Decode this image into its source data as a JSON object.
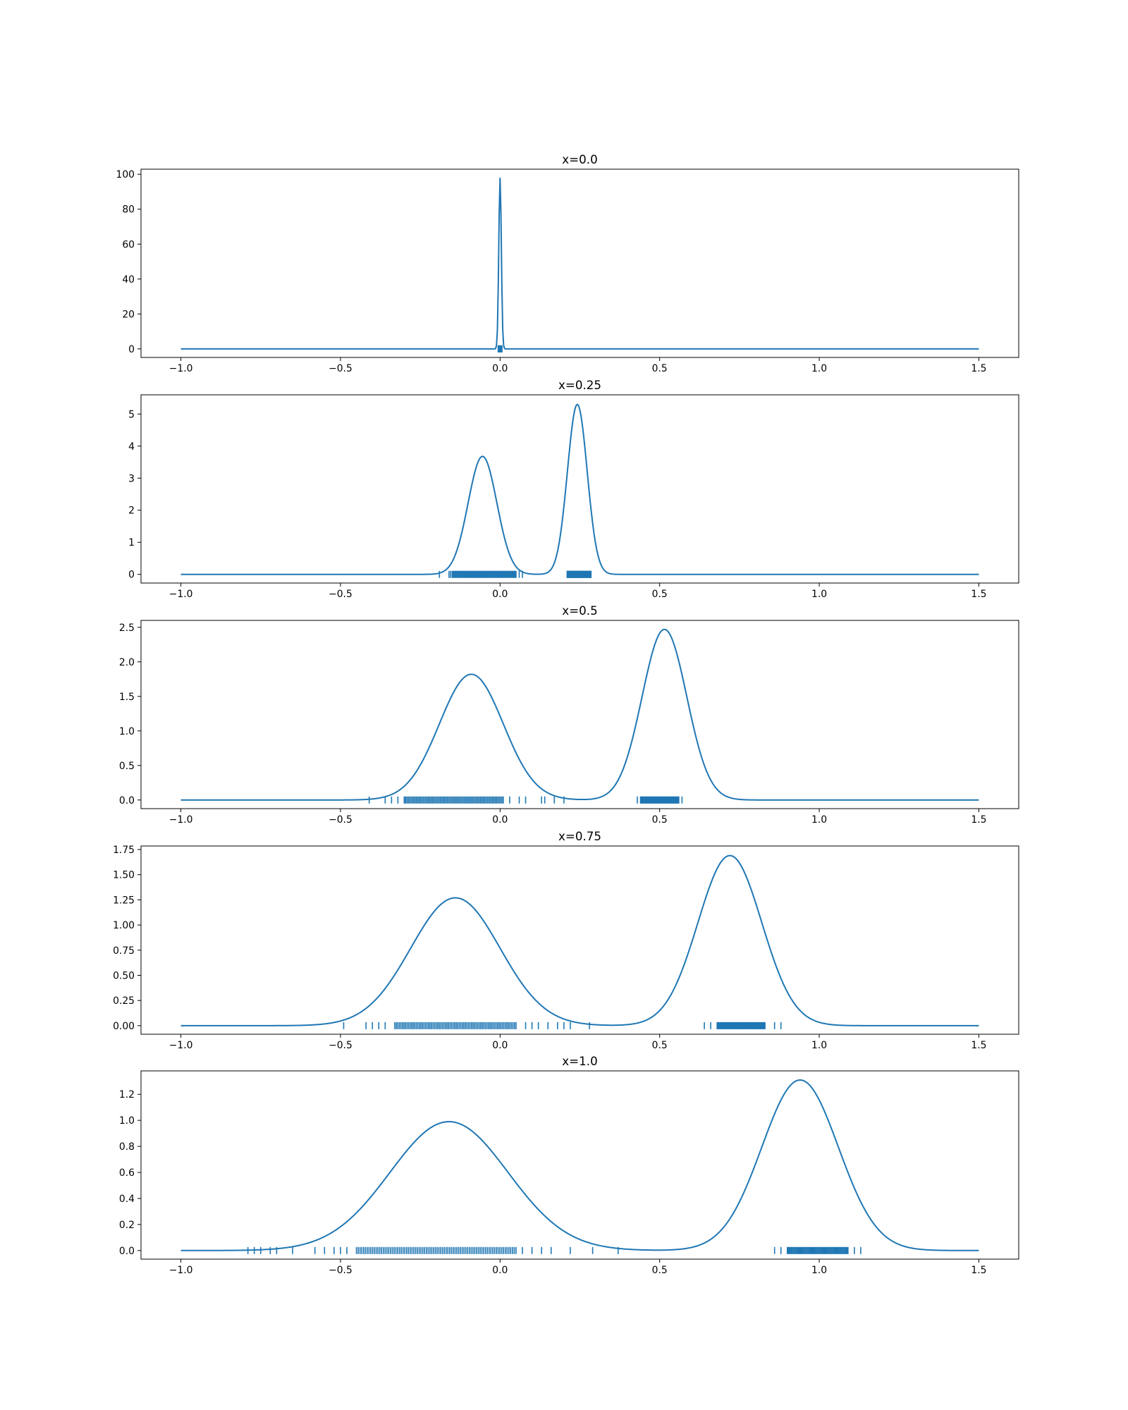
{
  "figure": {
    "background": "#ffffff",
    "line_color": "#1f77b4",
    "axes_color": "#000000"
  },
  "chart_data": [
    {
      "type": "line",
      "title": "x=0.0",
      "xlim": [
        -1.125,
        1.625
      ],
      "ylim": [
        -4.9,
        102.9
      ],
      "xticks": [
        -1.0,
        -0.5,
        0.0,
        0.5,
        1.0,
        1.5
      ],
      "xtick_labels": [
        "−1.0",
        "−0.5",
        "0.0",
        "0.5",
        "1.0",
        "1.5"
      ],
      "yticks": [
        0,
        20,
        40,
        60,
        80,
        100
      ],
      "ytick_labels": [
        "0",
        "20",
        "40",
        "60",
        "80",
        "100"
      ],
      "kde_components": [
        {
          "center": 0.0,
          "sigma": 0.004,
          "peak": 98.0
        }
      ],
      "rug_groups": [
        {
          "from": -0.006,
          "to": 0.006,
          "count": 8
        }
      ],
      "rug_points": []
    },
    {
      "type": "line",
      "title": "x=0.25",
      "xlim": [
        -1.125,
        1.625
      ],
      "ylim": [
        -0.27,
        5.6
      ],
      "xticks": [
        -1.0,
        -0.5,
        0.0,
        0.5,
        1.0,
        1.5
      ],
      "xtick_labels": [
        "−1.0",
        "−0.5",
        "0.0",
        "0.5",
        "1.0",
        "1.5"
      ],
      "yticks": [
        0,
        1,
        2,
        3,
        4,
        5
      ],
      "ytick_labels": [
        "0",
        "1",
        "2",
        "3",
        "4",
        "5"
      ],
      "kde_components": [
        {
          "center": -0.055,
          "sigma": 0.045,
          "peak": 3.68
        },
        {
          "center": 0.242,
          "sigma": 0.031,
          "peak": 5.3
        }
      ],
      "rug_groups": [
        {
          "from": -0.15,
          "to": 0.05,
          "count": 70
        },
        {
          "from": 0.21,
          "to": 0.285,
          "count": 80
        }
      ],
      "rug_points": [
        -0.19,
        -0.16,
        -0.155,
        0.06,
        0.07
      ]
    },
    {
      "type": "line",
      "title": "x=0.5",
      "xlim": [
        -1.125,
        1.625
      ],
      "ylim": [
        -0.125,
        2.6
      ],
      "xticks": [
        -1.0,
        -0.5,
        0.0,
        0.5,
        1.0,
        1.5
      ],
      "xtick_labels": [
        "−1.0",
        "−0.5",
        "0.0",
        "0.5",
        "1.0",
        "1.5"
      ],
      "yticks": [
        0.0,
        0.5,
        1.0,
        1.5,
        2.0,
        2.5
      ],
      "ytick_labels": [
        "0.0",
        "0.5",
        "1.0",
        "1.5",
        "2.0",
        "2.5"
      ],
      "kde_components": [
        {
          "center": -0.09,
          "sigma": 0.1,
          "peak": 1.82
        },
        {
          "center": 0.515,
          "sigma": 0.07,
          "peak": 2.47
        }
      ],
      "rug_groups": [
        {
          "from": -0.3,
          "to": 0.01,
          "count": 75
        },
        {
          "from": 0.44,
          "to": 0.56,
          "count": 60
        }
      ],
      "rug_points": [
        -0.41,
        -0.36,
        -0.34,
        -0.32,
        -0.3,
        0.03,
        0.06,
        0.08,
        0.13,
        0.14,
        0.17,
        0.2,
        0.43,
        0.57
      ]
    },
    {
      "type": "line",
      "title": "x=0.75",
      "xlim": [
        -1.125,
        1.625
      ],
      "ylim": [
        -0.085,
        1.785
      ],
      "xticks": [
        -1.0,
        -0.5,
        0.0,
        0.5,
        1.0,
        1.5
      ],
      "xtick_labels": [
        "−1.0",
        "−0.5",
        "0.0",
        "0.5",
        "1.0",
        "1.5"
      ],
      "yticks": [
        0.0,
        0.25,
        0.5,
        0.75,
        1.0,
        1.25,
        1.5,
        1.75
      ],
      "ytick_labels": [
        "0.00",
        "0.25",
        "0.50",
        "0.75",
        "1.00",
        "1.25",
        "1.50",
        "1.75"
      ],
      "kde_components": [
        {
          "center": -0.14,
          "sigma": 0.14,
          "peak": 1.27
        },
        {
          "center": 0.72,
          "sigma": 0.1,
          "peak": 1.69
        }
      ],
      "rug_groups": [
        {
          "from": -0.33,
          "to": 0.05,
          "count": 80
        },
        {
          "from": 0.68,
          "to": 0.83,
          "count": 60
        }
      ],
      "rug_points": [
        -0.49,
        -0.42,
        -0.4,
        -0.38,
        -0.36,
        0.08,
        0.1,
        0.12,
        0.15,
        0.18,
        0.2,
        0.22,
        0.28,
        0.64,
        0.66,
        0.86,
        0.88
      ]
    },
    {
      "type": "line",
      "title": "x=1.0",
      "xlim": [
        -1.125,
        1.625
      ],
      "ylim": [
        -0.066,
        1.38
      ],
      "xticks": [
        -1.0,
        -0.5,
        0.0,
        0.5,
        1.0,
        1.5
      ],
      "xtick_labels": [
        "−1.0",
        "−0.5",
        "0.0",
        "0.5",
        "1.0",
        "1.5"
      ],
      "yticks": [
        0.0,
        0.2,
        0.4,
        0.6,
        0.8,
        1.0,
        1.2
      ],
      "ytick_labels": [
        "0.0",
        "0.2",
        "0.4",
        "0.6",
        "0.8",
        "1.0",
        "1.2"
      ],
      "kde_components": [
        {
          "center": -0.16,
          "sigma": 0.185,
          "peak": 0.99
        },
        {
          "center": 0.94,
          "sigma": 0.12,
          "peak": 1.31
        }
      ],
      "rug_groups": [
        {
          "from": -0.45,
          "to": 0.05,
          "count": 90
        },
        {
          "from": 0.9,
          "to": 1.09,
          "count": 60
        }
      ],
      "rug_points": [
        -0.79,
        -0.77,
        -0.75,
        -0.72,
        -0.7,
        -0.65,
        -0.58,
        -0.55,
        -0.52,
        -0.5,
        -0.48,
        0.07,
        0.1,
        0.13,
        0.16,
        0.22,
        0.29,
        0.37,
        0.86,
        0.88,
        1.11,
        1.13
      ]
    }
  ]
}
